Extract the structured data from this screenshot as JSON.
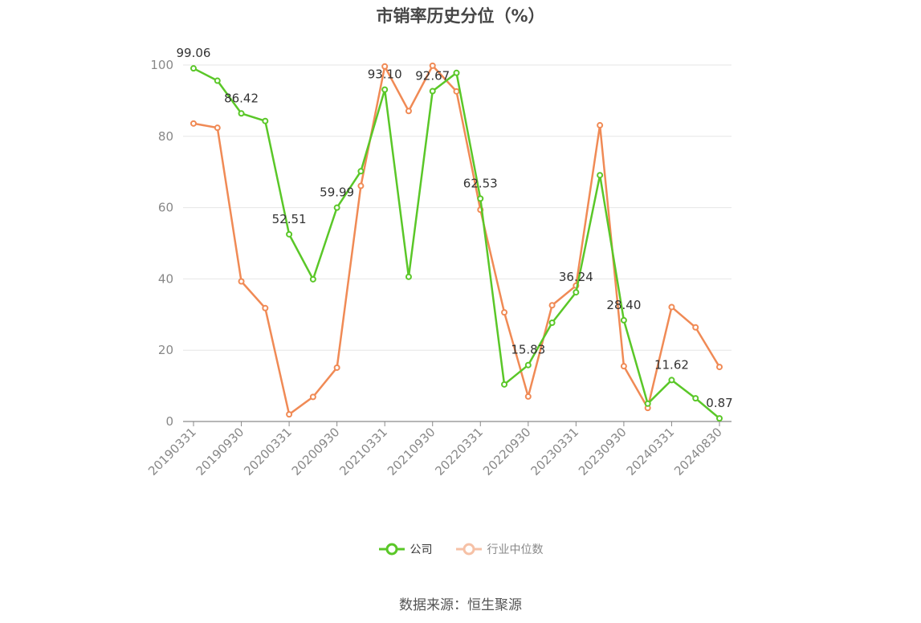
{
  "chart_data": {
    "type": "line",
    "title": "市销率历史分位（%）",
    "xlabel": "",
    "ylabel": "",
    "ylim": [
      0,
      100
    ],
    "yticks": [
      0,
      20,
      40,
      60,
      80,
      100
    ],
    "grid": true,
    "legend_position": "bottom-center",
    "x": [
      "20190331",
      "20190630",
      "20190930",
      "20191231",
      "20200331",
      "20200630",
      "20200930",
      "20201231",
      "20210331",
      "20210630",
      "20210930",
      "20211231",
      "20220331",
      "20220630",
      "20220930",
      "20221231",
      "20230331",
      "20230630",
      "20230930",
      "20231231",
      "20240331",
      "20240630",
      "20240830"
    ],
    "x_tick_labels": [
      "20190331",
      "20190930",
      "20200331",
      "20200930",
      "20210331",
      "20210930",
      "20220331",
      "20220930",
      "20230331",
      "20230930",
      "20240331",
      "20240830"
    ],
    "series": [
      {
        "name": "公司",
        "color": "#5ac728",
        "values": [
          99.06,
          95.6,
          86.42,
          84.3,
          52.51,
          39.9,
          59.99,
          70.2,
          93.1,
          40.6,
          92.67,
          97.8,
          62.53,
          10.4,
          15.83,
          27.7,
          36.24,
          69.1,
          28.4,
          5.0,
          11.62,
          6.5,
          0.87
        ],
        "labels": {
          "0": "99.06",
          "2": "86.42",
          "4": "52.51",
          "6": "59.99",
          "8": "93.10",
          "10": "92.67",
          "12": "62.53",
          "14": "15.83",
          "16": "36.24",
          "18": "28.40",
          "20": "11.62",
          "22": "0.87"
        }
      },
      {
        "name": "行业中位数",
        "color": "#f08a55",
        "values": [
          83.6,
          82.4,
          39.3,
          31.8,
          2.0,
          6.9,
          15.1,
          66.1,
          99.6,
          87.1,
          99.8,
          92.6,
          59.4,
          30.6,
          7.0,
          32.6,
          38.1,
          83.1,
          15.5,
          3.8,
          32.1,
          26.4,
          15.3
        ]
      }
    ]
  },
  "footer": {
    "source": "数据来源：恒生聚源"
  }
}
